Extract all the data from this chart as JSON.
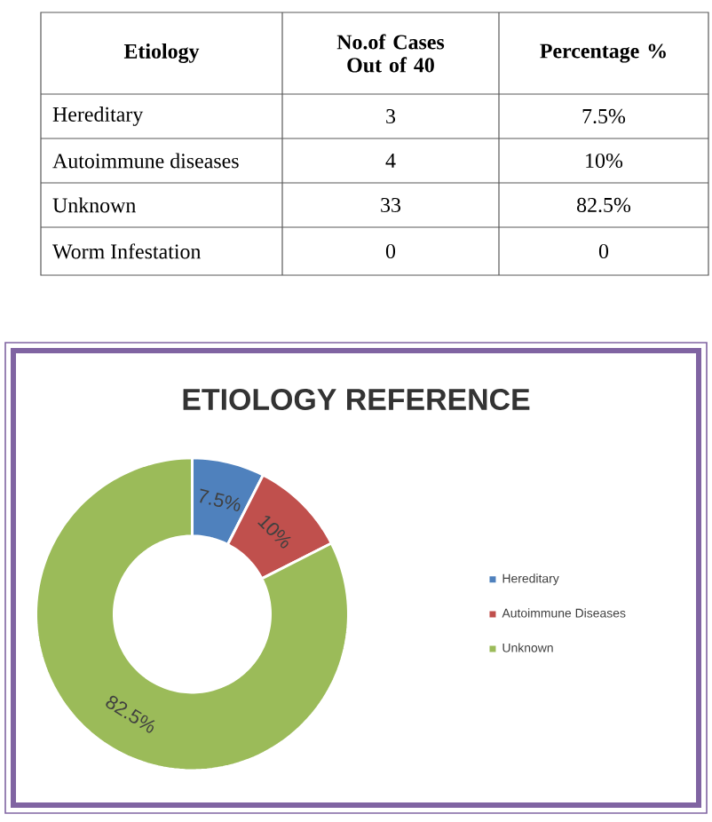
{
  "chart_data": {
    "type": "donut",
    "title": "ETIOLOGY REFERENCE",
    "categories": [
      "Hereditary",
      "Autoimmune Diseases",
      "Unknown"
    ],
    "values": [
      7.5,
      10,
      82.5
    ],
    "colors": [
      "#4f81bd",
      "#c0504d",
      "#9bbb59"
    ],
    "value_labels": [
      "7.5%",
      "10%",
      "82.5%"
    ],
    "legend": "right",
    "annotations": [
      "Etiology",
      "No.of Cases Out of 40",
      "Percentage %",
      "Hereditary",
      "3",
      "7.5%",
      "Autoimmune diseases",
      "4",
      "10%",
      "Unknown",
      "33",
      "82.5%",
      "Worm Infestation",
      "0",
      "0"
    ]
  }
}
